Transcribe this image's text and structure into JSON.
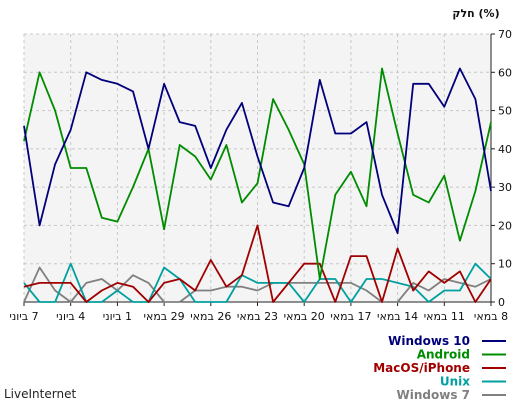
{
  "chart_data": {
    "type": "line",
    "ylabel": "חלק (%)",
    "ylim": [
      0,
      70
    ],
    "yticks": [
      0,
      10,
      20,
      30,
      40,
      50,
      60,
      70
    ],
    "x_tick_labels": [
      "8 במאי",
      "11 במאי",
      "14 במאי",
      "17 במאי",
      "20 במאי",
      "23 במאי",
      "26 במאי",
      "29 במאי",
      "1 ביוני",
      "4 ביוני",
      "7 ביוני"
    ],
    "grid": true,
    "legend_position": "bottom-right",
    "series": [
      {
        "name": "Windows 10",
        "color": "#00007a",
        "values": [
          29,
          53,
          61,
          51,
          57,
          57,
          18,
          28,
          47,
          44,
          44,
          58,
          35,
          25,
          26,
          38,
          52,
          45,
          35,
          46,
          47,
          57,
          40,
          55,
          57,
          58,
          60,
          45,
          36,
          20,
          46
        ]
      },
      {
        "name": "Android",
        "color": "#008c00",
        "values": [
          47,
          29,
          16,
          33,
          26,
          28,
          44,
          61,
          25,
          34,
          28,
          6,
          36,
          45,
          53,
          31,
          26,
          41,
          32,
          38,
          41,
          19,
          40,
          30,
          21,
          22,
          35,
          35,
          50,
          60,
          42
        ]
      },
      {
        "name": "MacOS/iPhone",
        "color": "#a00000",
        "values": [
          6,
          0,
          8,
          5,
          8,
          3,
          14,
          0,
          12,
          12,
          0,
          10,
          10,
          5,
          0,
          20,
          7,
          4,
          11,
          3,
          6,
          5,
          0,
          4,
          5,
          3,
          0,
          5,
          5,
          5,
          4
        ]
      },
      {
        "name": "Unix",
        "color": "#00a0a0",
        "values": [
          6,
          10,
          3,
          3,
          0,
          4,
          5,
          6,
          6,
          0,
          6,
          6,
          0,
          5,
          5,
          5,
          7,
          0,
          0,
          0,
          6,
          9,
          0,
          0,
          3,
          0,
          0,
          10,
          0,
          0,
          5
        ]
      },
      {
        "name": "Windows 7",
        "color": "#808080",
        "values": [
          6,
          4,
          5,
          6,
          3,
          5,
          0,
          0,
          3,
          5,
          5,
          5,
          5,
          5,
          5,
          3,
          4,
          4,
          3,
          3,
          0,
          0,
          5,
          7,
          3,
          6,
          5,
          0,
          3,
          9,
          0
        ]
      }
    ]
  },
  "footer": {
    "label": "LiveInternet"
  }
}
